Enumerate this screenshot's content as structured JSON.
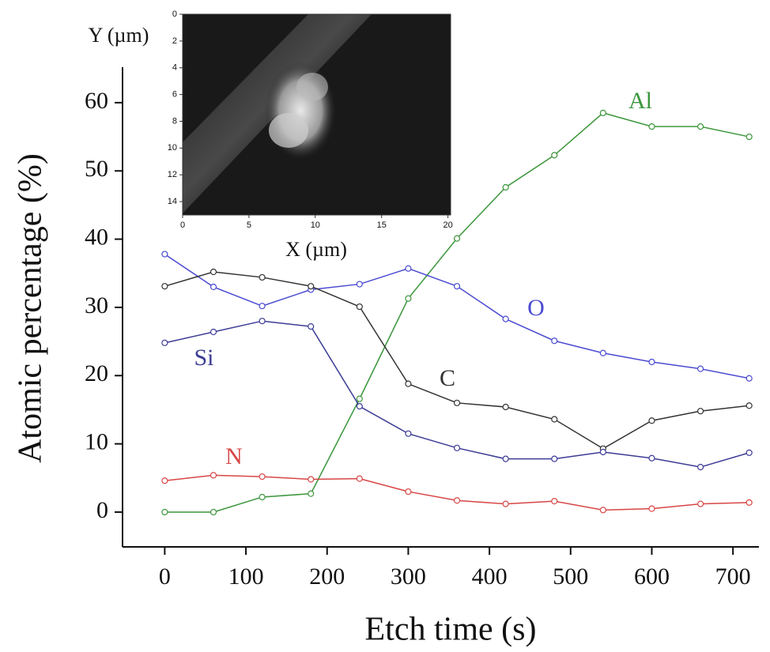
{
  "chart_data": {
    "type": "line",
    "x_label": "Etch time (s)",
    "y_label": "Atomic percentage (%)",
    "x": [
      0,
      60,
      120,
      180,
      240,
      300,
      360,
      420,
      480,
      540,
      600,
      660,
      720
    ],
    "series": [
      {
        "name": "Al",
        "color": "#3c963c",
        "values": [
          0,
          0,
          2.2,
          2.7,
          16.6,
          31.3,
          40.1,
          47.6,
          52.3,
          58.5,
          56.5,
          56.5,
          55.0
        ]
      },
      {
        "name": "O",
        "color": "#4b4bd2",
        "values": [
          37.8,
          33.0,
          30.2,
          32.6,
          33.4,
          35.7,
          33.1,
          28.3,
          25.1,
          23.3,
          22.0,
          21.0,
          19.6
        ]
      },
      {
        "name": "C",
        "color": "#333333",
        "values": [
          33.1,
          35.2,
          34.4,
          33.1,
          30.1,
          18.8,
          16.0,
          15.4,
          13.6,
          9.3,
          13.4,
          14.8,
          15.6
        ]
      },
      {
        "name": "Si",
        "color": "#3c3c96",
        "values": [
          24.8,
          26.4,
          28.0,
          27.2,
          15.5,
          11.5,
          9.4,
          7.8,
          7.8,
          8.8,
          7.9,
          6.6,
          8.7
        ]
      },
      {
        "name": "N",
        "color": "#d84646",
        "values": [
          4.6,
          5.4,
          5.2,
          4.8,
          4.9,
          3.0,
          1.7,
          1.2,
          1.6,
          0.3,
          0.5,
          1.2,
          1.4
        ]
      }
    ],
    "xlim": [
      -52,
      732
    ],
    "xticks": [
      0,
      100,
      200,
      300,
      400,
      500,
      600,
      700
    ],
    "ylim": [
      -5.1,
      65.2
    ],
    "yticks": [
      0,
      10,
      20,
      30,
      40,
      50,
      60
    ]
  },
  "inset": {
    "x_label": "X (µm)",
    "y_label": "Y (µm)",
    "xlim": [
      0,
      20.2
    ],
    "xticks": [
      0,
      5,
      10,
      15,
      20
    ],
    "ylim": [
      0,
      15
    ],
    "yticks": [
      0,
      2,
      4,
      6,
      8,
      10,
      12,
      14
    ]
  }
}
